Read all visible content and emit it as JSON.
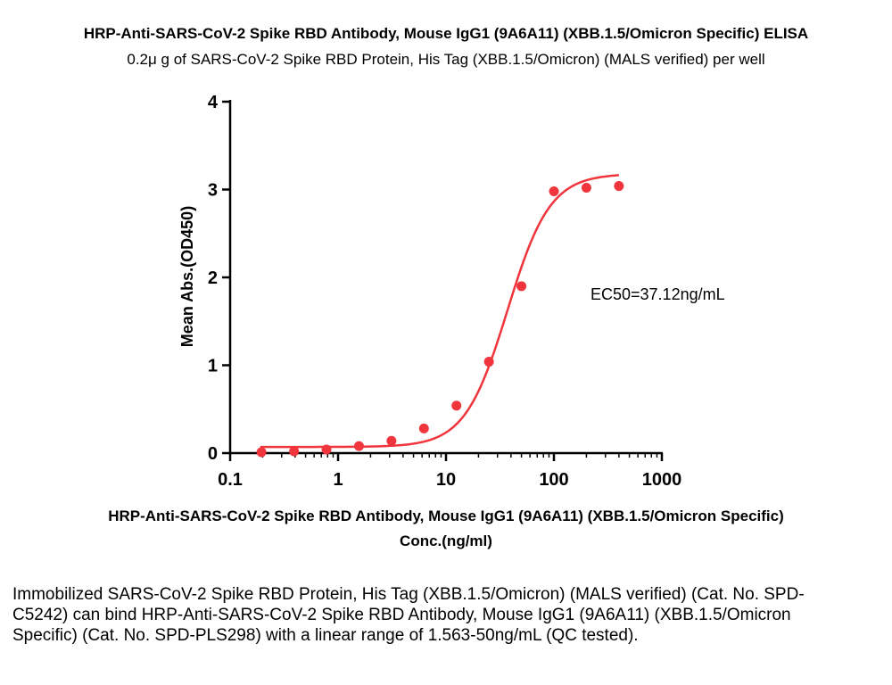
{
  "header": {
    "title": "HRP-Anti-SARS-CoV-2 Spike RBD Antibody, Mouse IgG1 (9A6A11) (XBB.1.5/Omicron Specific) ELISA",
    "subtitle": "0.2μ g of SARS-CoV-2 Spike RBD Protein, His Tag (XBB.1.5/Omicron) (MALS verified) per well"
  },
  "chart_data": {
    "type": "scatter",
    "xscale": "log",
    "xlim": [
      0.1,
      1000
    ],
    "ylim": [
      0,
      4
    ],
    "xticks": [
      0.1,
      1,
      10,
      100,
      1000
    ],
    "xtick_labels": [
      "0.1",
      "1",
      "10",
      "100",
      "1000"
    ],
    "yticks": [
      0,
      1,
      2,
      3,
      4
    ],
    "ytick_labels": [
      "0",
      "1",
      "2",
      "3",
      "4"
    ],
    "xlabel_line1": "HRP-Anti-SARS-CoV-2 Spike RBD Antibody, Mouse IgG1 (9A6A11) (XBB.1.5/Omicron Specific)",
    "xlabel_line2": "Conc.(ng/ml)",
    "ylabel": "Mean Abs.(OD450)",
    "annotation": "EC50=37.12ng/mL",
    "color": "#f0353d",
    "grid": false,
    "points": {
      "x": [
        0.195,
        0.391,
        0.781,
        1.563,
        3.125,
        6.25,
        12.5,
        25,
        50,
        100,
        200,
        400
      ],
      "y": [
        0.01,
        0.02,
        0.04,
        0.08,
        0.14,
        0.28,
        0.54,
        1.04,
        1.9,
        2.98,
        3.02,
        3.04
      ]
    },
    "fit": {
      "model": "4PL",
      "bottom": 0.07,
      "top": 3.18,
      "ec50": 37.12,
      "hill": 2.2,
      "x_range": [
        0.19,
        400
      ]
    }
  },
  "caption": "Immobilized SARS-CoV-2 Spike RBD Protein, His Tag (XBB.1.5/Omicron) (MALS verified) (Cat. No. SPD-C5242) can bind HRP-Anti-SARS-CoV-2 Spike RBD Antibody, Mouse IgG1 (9A6A11) (XBB.1.5/Omicron Specific) (Cat. No. SPD-PLS298) with a linear range of 1.563-50ng/mL (QC tested)."
}
